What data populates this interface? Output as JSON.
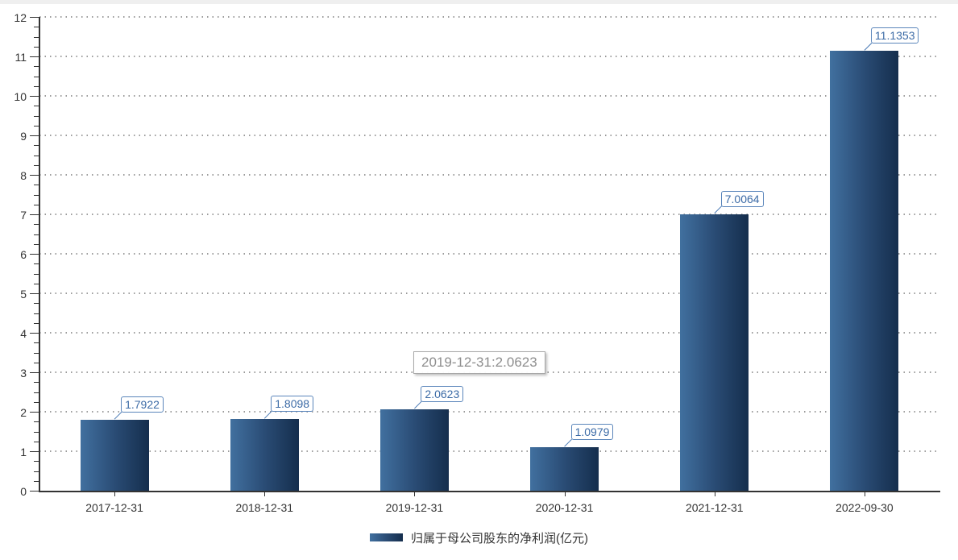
{
  "page": {
    "background": "#ffffff",
    "top_strip_color": "#efefef",
    "axis_color": "#333333",
    "gridline_color": "#9b9b9b"
  },
  "chart_data": {
    "type": "bar",
    "title": "",
    "xlabel": "",
    "ylabel": "",
    "categories": [
      "2017-12-31",
      "2018-12-31",
      "2019-12-31",
      "2020-12-31",
      "2021-12-31",
      "2022-09-30"
    ],
    "series": [
      {
        "name": "归属于母公司股东的净利润(亿元)",
        "values": [
          1.7922,
          1.8098,
          2.0623,
          1.0979,
          7.0064,
          11.1353
        ],
        "value_labels": [
          "1.7922",
          "1.8098",
          "2.0623",
          "1.0979",
          "7.0064",
          "11.1353"
        ]
      }
    ],
    "ylim": [
      0,
      12
    ],
    "y_ticks": [
      0,
      1,
      2,
      3,
      4,
      5,
      6,
      7,
      8,
      9,
      10,
      11,
      12
    ],
    "minor_ticks_per_unit": 4,
    "grid": "horizontal-dotted",
    "legend_position": "bottom-center",
    "bar_gradient": [
      "#41709f",
      "#2a4c75",
      "#152e4d"
    ],
    "value_label_text_color": "#3c6ba6",
    "value_label_border_color": "#5b86bb"
  },
  "tooltip": {
    "text": "2019-12-31:2.0623",
    "text_color": "#8e8e8e",
    "border_color": "#a8a8a8"
  },
  "legend": {
    "label": "归属于母公司股东的净利润(亿元)"
  }
}
